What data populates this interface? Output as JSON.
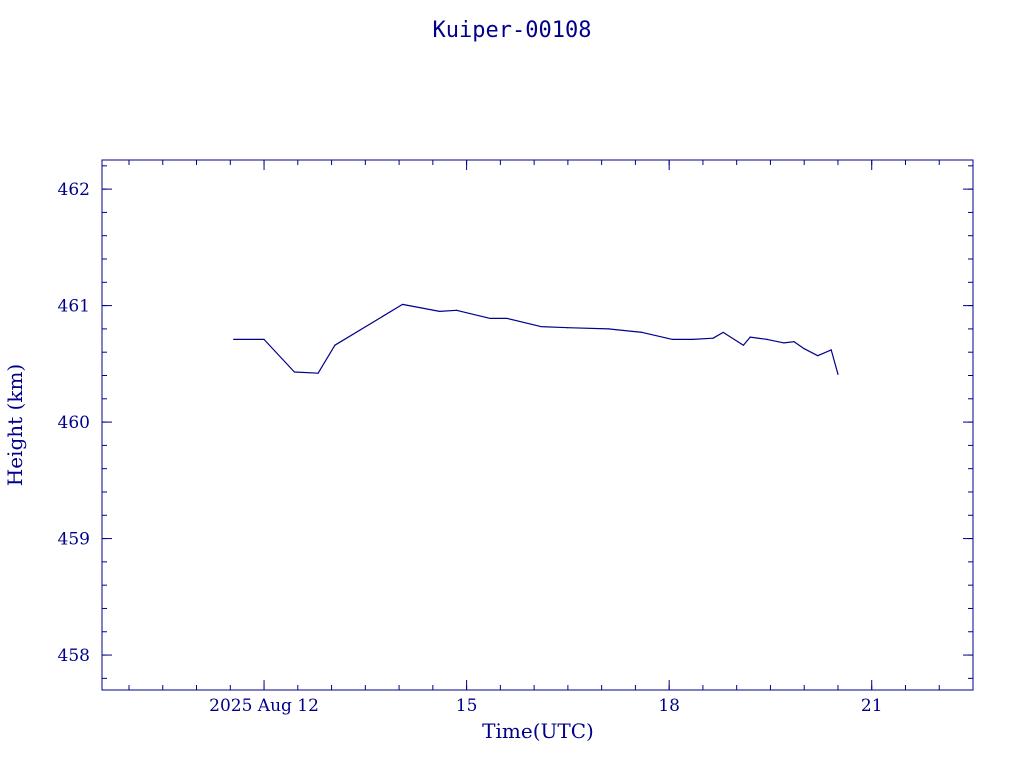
{
  "chart_data": {
    "type": "line",
    "title": "Kuiper-00108",
    "xlabel": "Time(UTC)",
    "ylabel": "Height (km)",
    "x_unit": "days (2025 Aug)",
    "xlim": [
      9.6,
      22.5
    ],
    "ylim": [
      457.7,
      462.25
    ],
    "x_ticks": [
      {
        "value": 12,
        "label": "2025 Aug 12"
      },
      {
        "value": 15,
        "label": "15"
      },
      {
        "value": 18,
        "label": "18"
      },
      {
        "value": 21,
        "label": "21"
      }
    ],
    "x_minor_step": 0.5,
    "y_ticks": [
      {
        "value": 458,
        "label": "458"
      },
      {
        "value": 459,
        "label": "459"
      },
      {
        "value": 460,
        "label": "460"
      },
      {
        "value": 461,
        "label": "461"
      },
      {
        "value": 462,
        "label": "462"
      }
    ],
    "y_minor_step": 0.2,
    "grid": false,
    "series": [
      {
        "color": "#00008B",
        "x": [
          11.55,
          12.0,
          12.45,
          12.8,
          13.05,
          14.05,
          14.6,
          14.85,
          15.35,
          15.6,
          16.1,
          16.5,
          17.1,
          17.6,
          18.05,
          18.35,
          18.65,
          18.8,
          19.1,
          19.2,
          19.45,
          19.7,
          19.85,
          20.0,
          20.2,
          20.4,
          20.5
        ],
        "y": [
          460.71,
          460.71,
          460.43,
          460.42,
          460.66,
          461.01,
          460.95,
          460.96,
          460.89,
          460.89,
          460.82,
          460.81,
          460.8,
          460.77,
          460.71,
          460.71,
          460.72,
          460.77,
          460.66,
          460.73,
          460.71,
          460.68,
          460.69,
          460.63,
          460.57,
          460.62,
          460.41
        ]
      }
    ]
  }
}
